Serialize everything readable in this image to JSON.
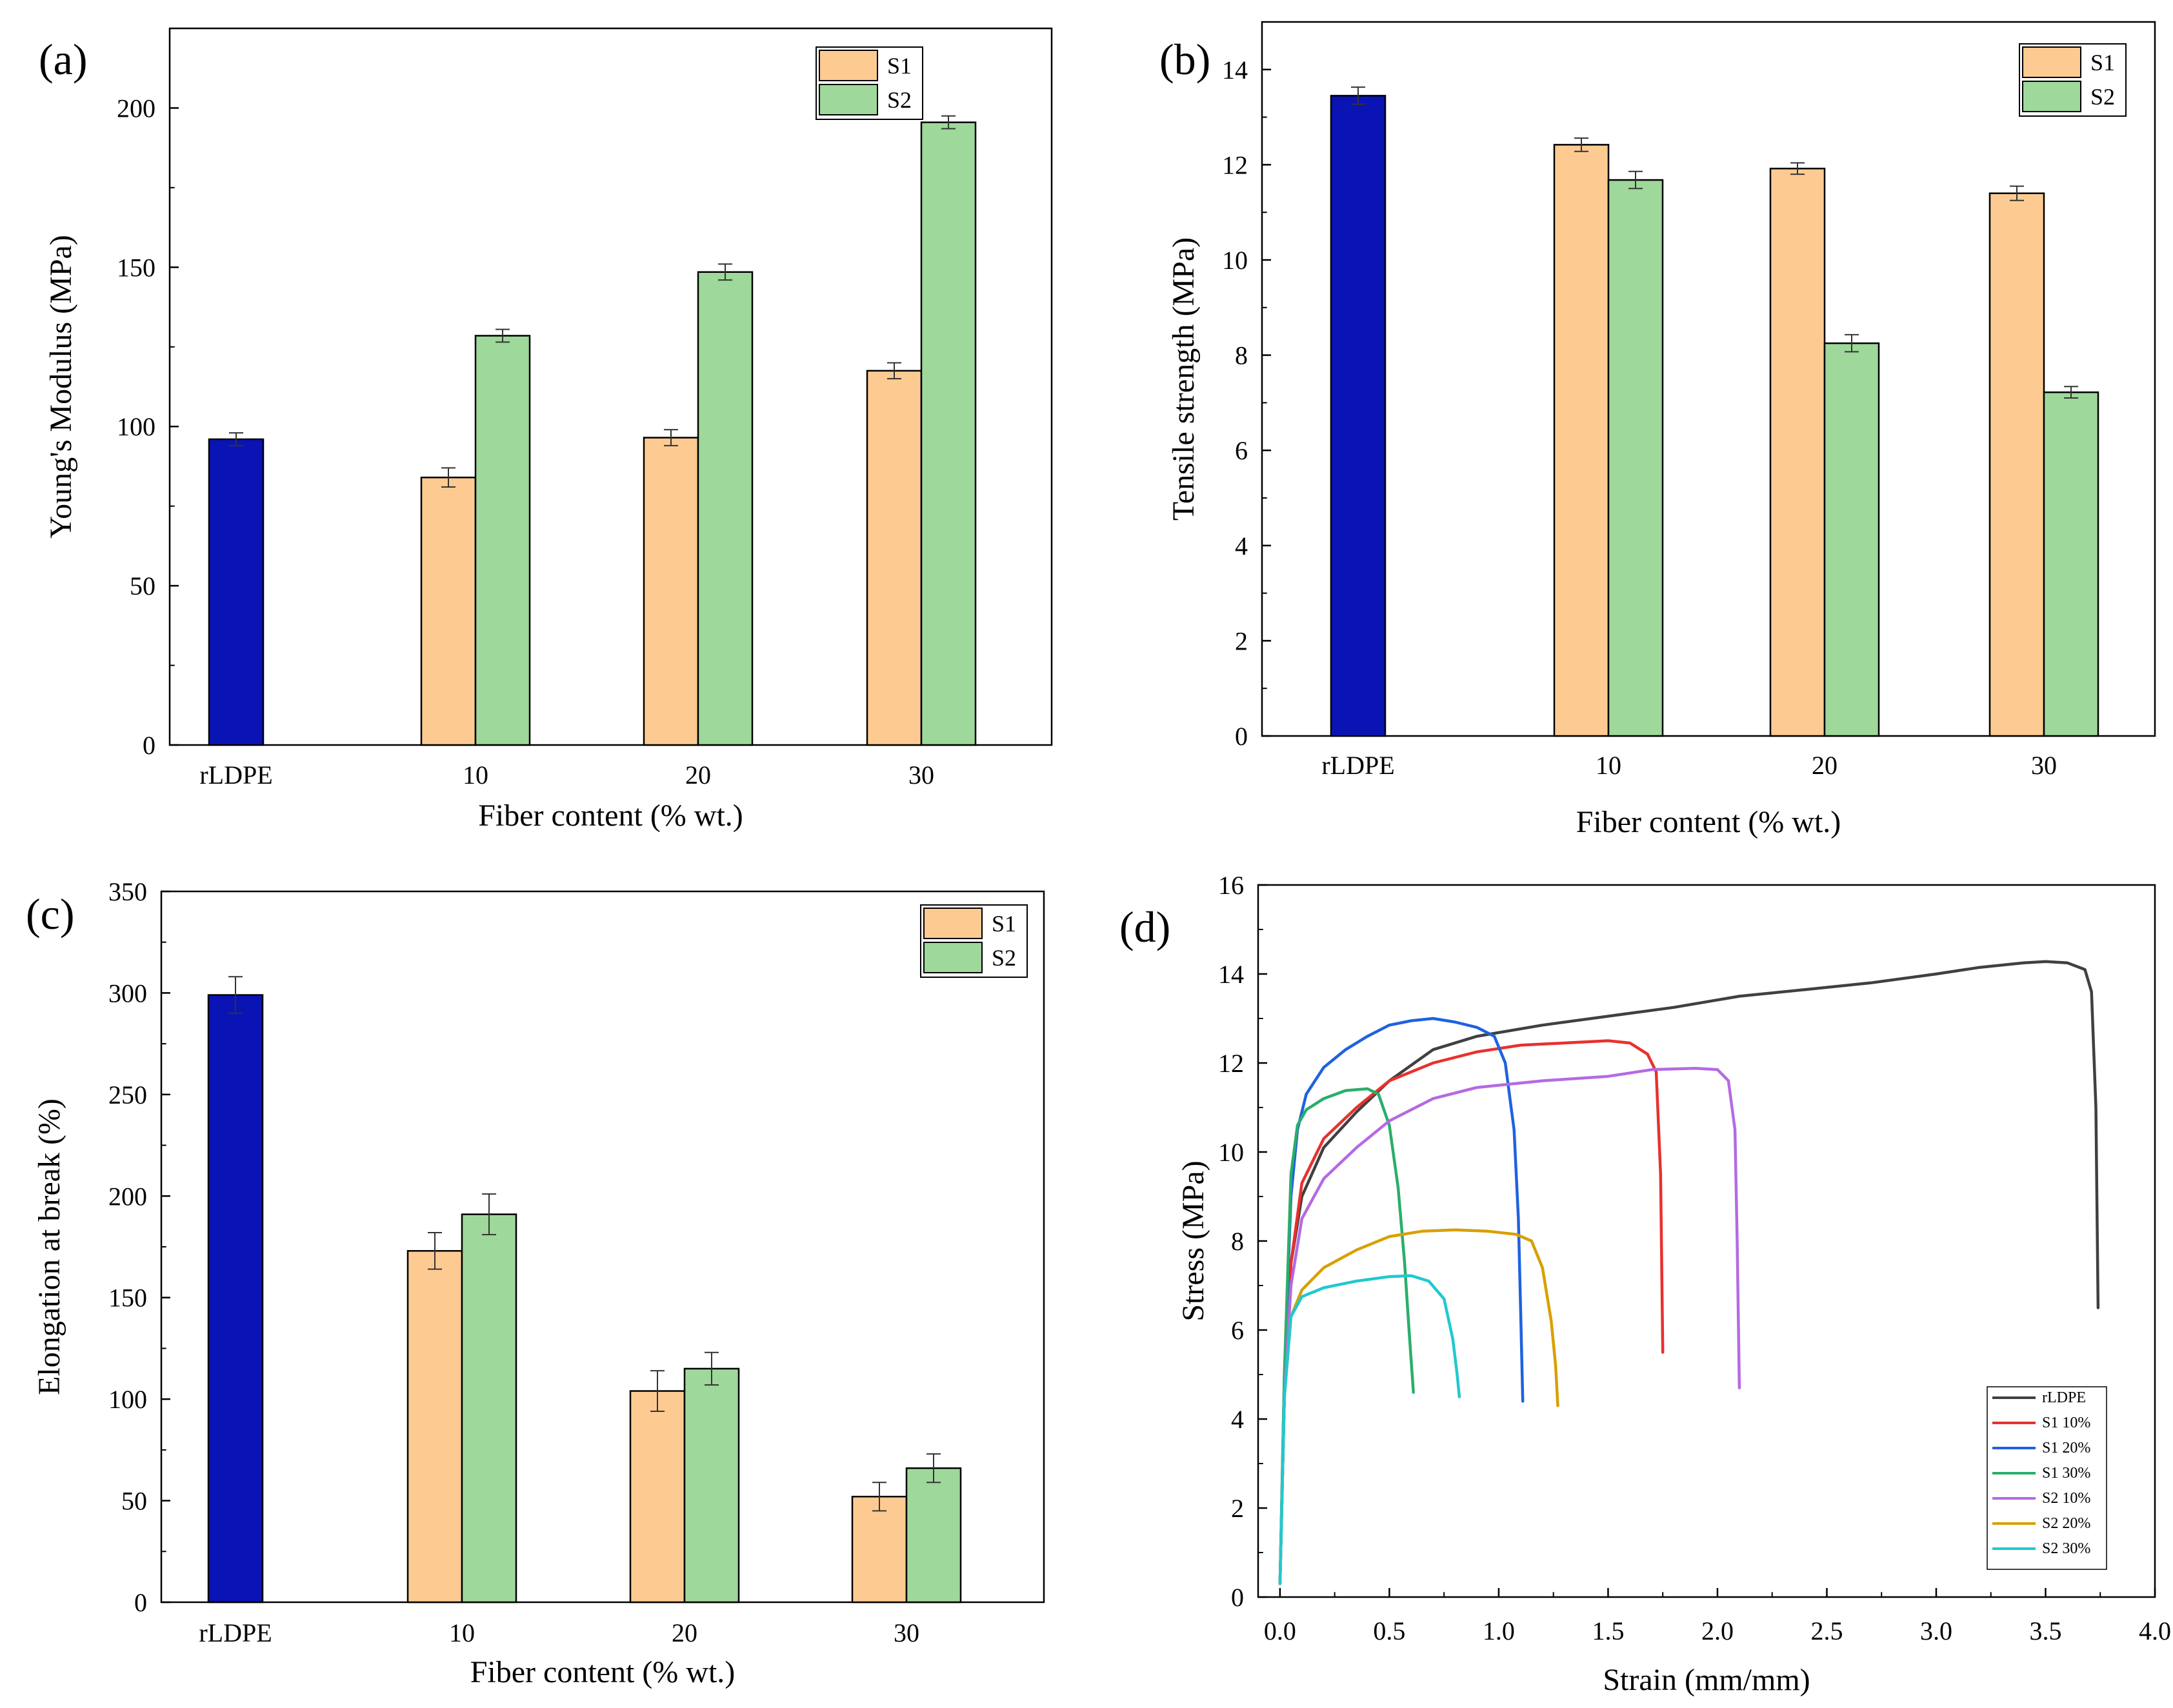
{
  "colors": {
    "rldpe_bar": "#0A14B4",
    "s1_bar": "#FDCB92",
    "s2_bar": "#9ED89A",
    "axis": "#000000"
  },
  "chart_data": [
    {
      "panel_label": "(a)",
      "type": "bar",
      "title": "",
      "xlabel": "Fiber content (% wt.)",
      "ylabel": "Young's Modulus (MPa)",
      "ylim": [
        0,
        225
      ],
      "yticks": [
        0,
        50,
        100,
        150,
        200
      ],
      "categories": [
        "rLDPE",
        "10",
        "20",
        "30"
      ],
      "legend_position": "top-right",
      "series": [
        {
          "name": "rLDPE",
          "color_key": "rldpe_bar",
          "values": [
            96,
            null,
            null,
            null
          ],
          "errors": [
            2,
            null,
            null,
            null
          ]
        },
        {
          "name": "S1",
          "color_key": "s1_bar",
          "values": [
            null,
            84,
            96.5,
            117.5
          ],
          "errors": [
            null,
            3,
            2.5,
            2.5
          ]
        },
        {
          "name": "S2",
          "color_key": "s2_bar",
          "values": [
            null,
            128.5,
            148.5,
            195.5
          ],
          "errors": [
            null,
            2,
            2.5,
            2
          ]
        }
      ]
    },
    {
      "panel_label": "(b)",
      "type": "bar",
      "title": "",
      "xlabel": "Fiber content (% wt.)",
      "ylabel": "Tensile strength (MPa)",
      "ylim": [
        0,
        15
      ],
      "yticks": [
        0,
        2,
        4,
        6,
        8,
        10,
        12,
        14
      ],
      "categories": [
        "rLDPE",
        "10",
        "20",
        "30"
      ],
      "legend_position": "top-right",
      "series": [
        {
          "name": "rLDPE",
          "color_key": "rldpe_bar",
          "values": [
            13.45,
            null,
            null,
            null
          ],
          "errors": [
            0.18,
            null,
            null,
            null
          ]
        },
        {
          "name": "S1",
          "color_key": "s1_bar",
          "values": [
            null,
            12.42,
            11.92,
            11.4
          ],
          "errors": [
            null,
            0.14,
            0.12,
            0.15
          ]
        },
        {
          "name": "S2",
          "color_key": "s2_bar",
          "values": [
            null,
            11.68,
            8.25,
            7.22
          ],
          "errors": [
            null,
            0.18,
            0.18,
            0.12
          ]
        }
      ]
    },
    {
      "panel_label": "(c)",
      "type": "bar",
      "title": "",
      "xlabel": "Fiber content (% wt.)",
      "ylabel": "Elongation at break (%)",
      "ylim": [
        0,
        350
      ],
      "yticks": [
        0,
        50,
        100,
        150,
        200,
        250,
        300,
        350
      ],
      "categories": [
        "rLDPE",
        "10",
        "20",
        "30"
      ],
      "legend_position": "top-right",
      "series": [
        {
          "name": "rLDPE",
          "color_key": "rldpe_bar",
          "values": [
            299,
            null,
            null,
            null
          ],
          "errors": [
            9,
            null,
            null,
            null
          ]
        },
        {
          "name": "S1",
          "color_key": "s1_bar",
          "values": [
            null,
            173,
            104,
            52
          ],
          "errors": [
            null,
            9,
            10,
            7
          ]
        },
        {
          "name": "S2",
          "color_key": "s2_bar",
          "values": [
            null,
            191,
            115,
            66
          ],
          "errors": [
            null,
            10,
            8,
            7
          ]
        }
      ]
    },
    {
      "panel_label": "(d)",
      "type": "line",
      "title": "",
      "xlabel": "Strain (mm/mm)",
      "ylabel": "Stress (MPa)",
      "xlim": [
        -0.1,
        4.0
      ],
      "ylim": [
        0,
        16
      ],
      "xticks": [
        "0.0",
        "0.5",
        "1.0",
        "1.5",
        "2.0",
        "2.5",
        "3.0",
        "3.5",
        "4.0"
      ],
      "yticks": [
        0,
        2,
        4,
        6,
        8,
        10,
        12,
        14,
        16
      ],
      "legend_position": "bottom-right",
      "series": [
        {
          "name": "rLDPE",
          "color": "#404040",
          "points": [
            [
              0,
              0.3
            ],
            [
              0.02,
              4.5
            ],
            [
              0.05,
              7.5
            ],
            [
              0.1,
              9.0
            ],
            [
              0.2,
              10.1
            ],
            [
              0.35,
              10.9
            ],
            [
              0.5,
              11.6
            ],
            [
              0.7,
              12.3
            ],
            [
              0.9,
              12.6
            ],
            [
              1.2,
              12.85
            ],
            [
              1.5,
              13.05
            ],
            [
              1.8,
              13.25
            ],
            [
              2.1,
              13.5
            ],
            [
              2.4,
              13.65
            ],
            [
              2.7,
              13.8
            ],
            [
              3.0,
              14.0
            ],
            [
              3.2,
              14.15
            ],
            [
              3.4,
              14.25
            ],
            [
              3.5,
              14.28
            ],
            [
              3.6,
              14.25
            ],
            [
              3.68,
              14.1
            ],
            [
              3.71,
              13.6
            ],
            [
              3.73,
              11
            ],
            [
              3.74,
              6.5
            ]
          ]
        },
        {
          "name": "S1 10%",
          "color": "#E8312E",
          "points": [
            [
              0,
              0.3
            ],
            [
              0.02,
              4.5
            ],
            [
              0.05,
              7.5
            ],
            [
              0.1,
              9.3
            ],
            [
              0.2,
              10.3
            ],
            [
              0.35,
              11.0
            ],
            [
              0.5,
              11.6
            ],
            [
              0.7,
              12.0
            ],
            [
              0.9,
              12.25
            ],
            [
              1.1,
              12.4
            ],
            [
              1.3,
              12.45
            ],
            [
              1.5,
              12.5
            ],
            [
              1.6,
              12.45
            ],
            [
              1.68,
              12.2
            ],
            [
              1.72,
              11.8
            ],
            [
              1.74,
              9.5
            ],
            [
              1.75,
              5.5
            ]
          ]
        },
        {
          "name": "S1 20%",
          "color": "#1F62E0",
          "points": [
            [
              0,
              0.3
            ],
            [
              0.02,
              5
            ],
            [
              0.05,
              9
            ],
            [
              0.08,
              10.5
            ],
            [
              0.12,
              11.3
            ],
            [
              0.2,
              11.9
            ],
            [
              0.3,
              12.3
            ],
            [
              0.4,
              12.6
            ],
            [
              0.5,
              12.85
            ],
            [
              0.6,
              12.95
            ],
            [
              0.7,
              13.0
            ],
            [
              0.8,
              12.92
            ],
            [
              0.9,
              12.8
            ],
            [
              0.98,
              12.6
            ],
            [
              1.03,
              12.0
            ],
            [
              1.07,
              10.5
            ],
            [
              1.09,
              8.5
            ],
            [
              1.1,
              6.5
            ],
            [
              1.11,
              4.4
            ]
          ]
        },
        {
          "name": "S1 30%",
          "color": "#2AAE6A",
          "points": [
            [
              0,
              0.3
            ],
            [
              0.02,
              5
            ],
            [
              0.05,
              9.5
            ],
            [
              0.08,
              10.6
            ],
            [
              0.12,
              10.95
            ],
            [
              0.2,
              11.2
            ],
            [
              0.3,
              11.38
            ],
            [
              0.4,
              11.42
            ],
            [
              0.45,
              11.3
            ],
            [
              0.5,
              10.6
            ],
            [
              0.54,
              9.2
            ],
            [
              0.57,
              7.5
            ],
            [
              0.59,
              6.0
            ],
            [
              0.61,
              4.6
            ]
          ]
        },
        {
          "name": "S2 10%",
          "color": "#B46AE3",
          "points": [
            [
              0,
              0.3
            ],
            [
              0.02,
              4.5
            ],
            [
              0.05,
              7.0
            ],
            [
              0.1,
              8.5
            ],
            [
              0.2,
              9.4
            ],
            [
              0.35,
              10.1
            ],
            [
              0.5,
              10.7
            ],
            [
              0.7,
              11.2
            ],
            [
              0.9,
              11.45
            ],
            [
              1.2,
              11.6
            ],
            [
              1.5,
              11.7
            ],
            [
              1.7,
              11.85
            ],
            [
              1.9,
              11.88
            ],
            [
              2.0,
              11.85
            ],
            [
              2.05,
              11.6
            ],
            [
              2.08,
              10.5
            ],
            [
              2.09,
              8
            ],
            [
              2.1,
              4.7
            ]
          ]
        },
        {
          "name": "S2 20%",
          "color": "#D8A000",
          "points": [
            [
              0,
              0.3
            ],
            [
              0.02,
              4.5
            ],
            [
              0.05,
              6.3
            ],
            [
              0.1,
              6.9
            ],
            [
              0.2,
              7.4
            ],
            [
              0.35,
              7.8
            ],
            [
              0.5,
              8.1
            ],
            [
              0.65,
              8.22
            ],
            [
              0.8,
              8.25
            ],
            [
              0.95,
              8.22
            ],
            [
              1.08,
              8.15
            ],
            [
              1.15,
              8.0
            ],
            [
              1.2,
              7.4
            ],
            [
              1.24,
              6.2
            ],
            [
              1.26,
              5.2
            ],
            [
              1.27,
              4.3
            ]
          ]
        },
        {
          "name": "S2 30%",
          "color": "#20C9CF",
          "points": [
            [
              0,
              0.3
            ],
            [
              0.02,
              4.5
            ],
            [
              0.05,
              6.3
            ],
            [
              0.1,
              6.75
            ],
            [
              0.2,
              6.95
            ],
            [
              0.35,
              7.1
            ],
            [
              0.5,
              7.2
            ],
            [
              0.6,
              7.22
            ],
            [
              0.68,
              7.1
            ],
            [
              0.75,
              6.7
            ],
            [
              0.79,
              5.8
            ],
            [
              0.81,
              5.0
            ],
            [
              0.82,
              4.5
            ]
          ]
        }
      ]
    }
  ]
}
